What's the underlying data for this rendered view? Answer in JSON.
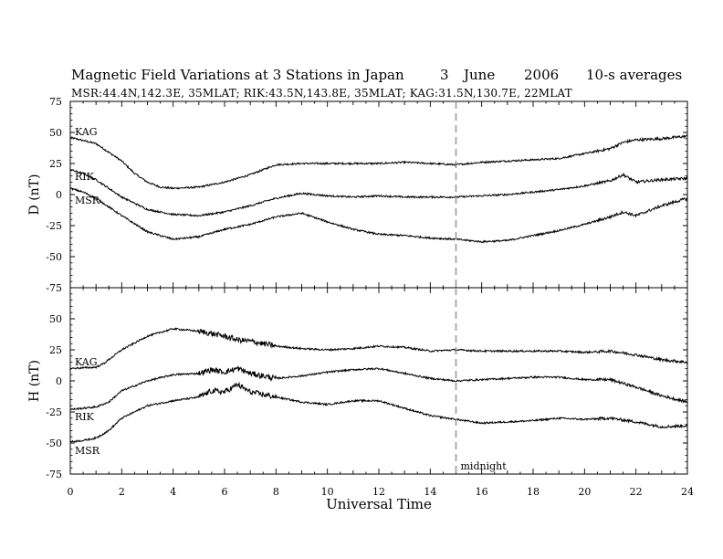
{
  "header": {
    "title": "Magnetic Field Variations at 3 Stations in Japan",
    "day": "3",
    "month": "June",
    "year": "2006",
    "averaging": "10-s averages",
    "subtitle": "MSR:44.4N,142.3E, 35MLAT;  RIK:43.5N,143.8E, 35MLAT;  KAG:31.5N,130.7E, 22MLAT"
  },
  "chart_data": [
    {
      "type": "line",
      "panel": "D",
      "ylabel": "D (nT)",
      "ylim": [
        -75,
        75
      ],
      "yticks": [
        75,
        50,
        25,
        0,
        -25,
        -50,
        -75
      ],
      "xlim": [
        0,
        24
      ],
      "series": [
        {
          "name": "KAG",
          "x": [
            0,
            1,
            2,
            2.5,
            3,
            3.5,
            4,
            5,
            6,
            7,
            8,
            9,
            10,
            11,
            12,
            13,
            14,
            15,
            16,
            17,
            18,
            19,
            20,
            21,
            21.5,
            22,
            23,
            24
          ],
          "values": [
            46,
            41,
            27,
            17,
            10,
            6,
            5,
            6,
            10,
            16,
            24,
            25,
            25,
            25,
            25,
            26,
            25,
            24,
            26,
            27,
            28,
            29,
            33,
            37,
            42,
            44,
            45,
            47
          ]
        },
        {
          "name": "RIK",
          "x": [
            0,
            0.5,
            1,
            1.5,
            2,
            3,
            4,
            5,
            6,
            7,
            8,
            9,
            10,
            11,
            12,
            13,
            14,
            15,
            16,
            17,
            18,
            19,
            20,
            21,
            21.5,
            22,
            23,
            24
          ],
          "values": [
            20,
            17,
            12,
            5,
            -2,
            -12,
            -16,
            -17,
            -14,
            -9,
            -3,
            1,
            -1,
            -2,
            -1,
            -2,
            -2,
            -2,
            -1,
            0,
            2,
            4,
            7,
            11,
            16,
            10,
            12,
            13
          ]
        },
        {
          "name": "MSR",
          "x": [
            0,
            0.5,
            1,
            1.5,
            2,
            3,
            4,
            5,
            6,
            7,
            8,
            9,
            10,
            11,
            12,
            13,
            14,
            15,
            16,
            17,
            18,
            19,
            20,
            21,
            21.5,
            22,
            23,
            24
          ],
          "values": [
            5,
            2,
            -3,
            -10,
            -17,
            -30,
            -36,
            -34,
            -28,
            -24,
            -18,
            -15,
            -22,
            -28,
            -32,
            -33,
            -35,
            -36,
            -38,
            -37,
            -33,
            -29,
            -24,
            -18,
            -14,
            -17,
            -9,
            -3
          ]
        }
      ],
      "series_labels": [
        "KAG",
        "RIK",
        "MSR"
      ]
    },
    {
      "type": "line",
      "panel": "H",
      "ylabel": "H (nT)",
      "ylim": [
        -75,
        75
      ],
      "yticks": [
        75,
        50,
        25,
        0,
        -25,
        -50,
        -75
      ],
      "xlabel": "Universal Time",
      "xlim": [
        0,
        24
      ],
      "xticks": [
        0,
        2,
        4,
        6,
        8,
        10,
        12,
        14,
        16,
        18,
        20,
        22,
        24
      ],
      "series": [
        {
          "name": "KAG",
          "x": [
            0,
            1,
            1.3,
            2,
            3,
            4,
            5,
            6,
            6.5,
            7,
            8,
            9,
            10,
            11,
            12,
            13,
            14,
            15,
            16,
            17,
            18,
            19,
            20,
            21,
            22,
            23,
            24
          ],
          "values": [
            10,
            11,
            14,
            25,
            36,
            42,
            40,
            36,
            33,
            32,
            28,
            26,
            25,
            26,
            28,
            27,
            24,
            25,
            24,
            24,
            24,
            24,
            23,
            24,
            21,
            17,
            15
          ]
        },
        {
          "name": "RIK",
          "x": [
            0,
            0.5,
            1,
            1.5,
            2,
            3,
            4,
            5,
            5.5,
            6,
            6.5,
            7,
            8,
            9,
            10,
            11,
            12,
            13,
            14,
            15,
            16,
            17,
            18,
            19,
            20,
            21,
            22,
            23,
            24
          ],
          "values": [
            -23,
            -22,
            -21,
            -17,
            -8,
            0,
            5,
            6,
            9,
            7,
            10,
            6,
            2,
            4,
            7,
            9,
            10,
            6,
            2,
            0,
            1,
            2,
            3,
            3,
            1,
            1,
            -5,
            -12,
            -17
          ]
        },
        {
          "name": "MSR",
          "x": [
            0,
            0.5,
            1,
            1.5,
            2,
            3,
            4,
            5,
            5.5,
            6,
            6.5,
            7,
            8,
            9,
            10,
            11,
            12,
            13,
            14,
            15,
            16,
            17,
            18,
            19,
            20,
            21,
            22,
            23,
            24
          ],
          "values": [
            -49,
            -48,
            -46,
            -40,
            -30,
            -20,
            -16,
            -13,
            -8,
            -9,
            -3,
            -9,
            -13,
            -17,
            -19,
            -16,
            -16,
            -22,
            -28,
            -31,
            -34,
            -33,
            -32,
            -30,
            -31,
            -30,
            -33,
            -37,
            -36
          ]
        }
      ],
      "series_labels": [
        "KAG",
        "RIK",
        "MSR"
      ]
    }
  ],
  "annotations": {
    "midnight_label": "midnight",
    "midnight_ut": 15
  }
}
